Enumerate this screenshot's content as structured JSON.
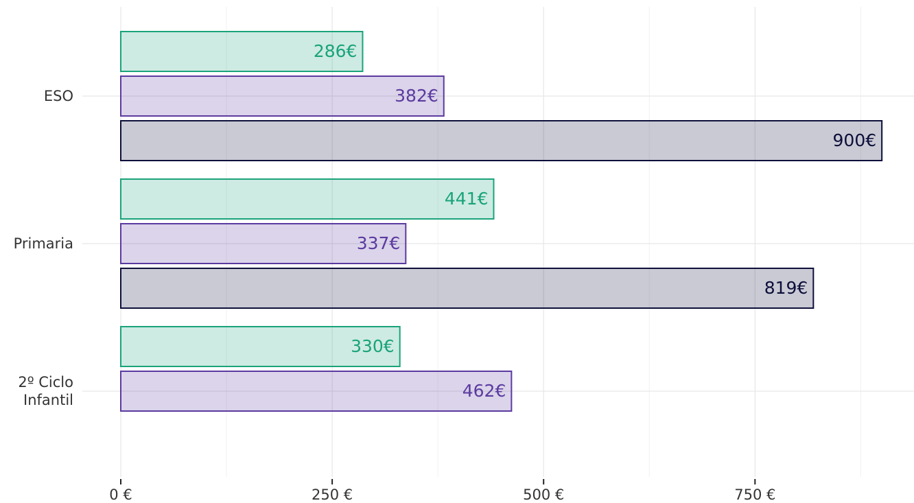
{
  "chart_data": {
    "type": "barh",
    "categories": [
      "ESO",
      "Primaria",
      "2º Ciclo\nInfantil"
    ],
    "series": [
      {
        "color": "#1aa37a",
        "values": [
          286,
          441,
          330
        ],
        "value_labels": [
          "286€",
          "441€",
          "330€"
        ]
      },
      {
        "color": "#5b3aa0",
        "values": [
          382,
          337,
          462
        ],
        "value_labels": [
          "382€",
          "337€",
          "462€"
        ]
      },
      {
        "color": "#0d0f3a",
        "values": [
          900,
          819,
          null
        ],
        "value_labels": [
          "900€",
          "819€",
          null
        ]
      }
    ],
    "xlim": [
      0,
      938
    ],
    "xticks": [
      {
        "value": 0,
        "label": "0 €"
      },
      {
        "value": 250,
        "label": "250 €"
      },
      {
        "value": 500,
        "label": "500 €"
      },
      {
        "value": 750,
        "label": "750 €"
      }
    ],
    "grid": true
  }
}
